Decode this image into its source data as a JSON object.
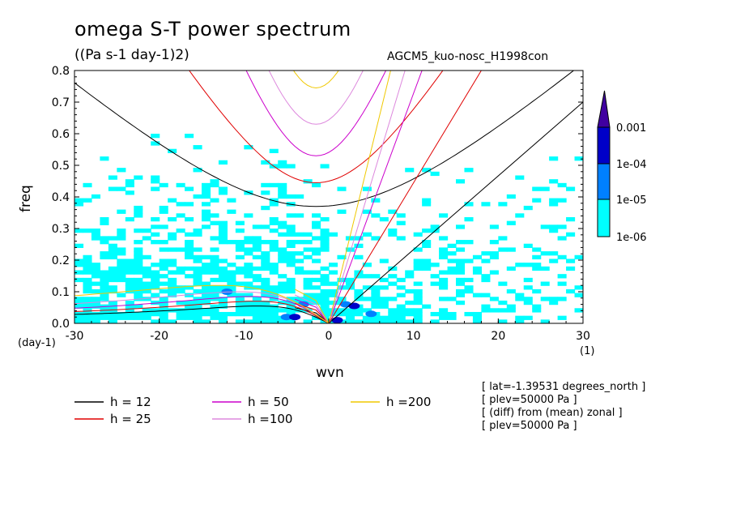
{
  "header": {
    "title": "omega S-T power spectrum",
    "subtitle": "((Pa s-1 day-1)2)",
    "run_name": "AGCM5_kuo-nosc_H1998con"
  },
  "axes": {
    "ylabel": "freq",
    "xlabel": "wvn",
    "xunit_left": "(day-1)",
    "xunit_right": "(1)"
  },
  "info_lines": [
    "[ lat=-1.39531 degrees_north ]",
    "[ plev=50000 Pa ]",
    "[ (diff) from (mean) zonal ]",
    "[ plev=50000 Pa ]"
  ],
  "colors": {
    "h12": "#000000",
    "h25": "#e00000",
    "h50": "#cc00cc",
    "h100": "#dd88dd",
    "h200": "#f0c800",
    "shade_1e-06": "#00ffff",
    "shade_1e-05": "#0080ff",
    "shade_1e-04": "#0000c8",
    "shade_0.001": "#4000a0"
  },
  "chart_data": {
    "type": "heatmap",
    "xlim": [
      -30,
      30
    ],
    "ylim": [
      0,
      0.8
    ],
    "x_ticks": [
      -30,
      -20,
      -10,
      0,
      10,
      20,
      30
    ],
    "y_ticks": [
      0.0,
      0.1,
      0.2,
      0.3,
      0.4,
      0.5,
      0.6,
      0.7,
      0.8
    ],
    "x_tick_labels": [
      "-30",
      "-20",
      "-10",
      "0",
      "10",
      "20",
      "30"
    ],
    "y_tick_labels": [
      "0.0",
      "0.1",
      "0.2",
      "0.3",
      "0.4",
      "0.5",
      "0.6",
      "0.7",
      "0.8"
    ],
    "contour_levels": [
      "1e-06",
      "1e-05",
      "1e-04",
      "0.001"
    ],
    "legend": [
      {
        "label": "h = 12",
        "h": 12
      },
      {
        "label": "h = 25",
        "h": 25
      },
      {
        "label": "h = 50",
        "h": 50
      },
      {
        "label": "h =100",
        "h": 100
      },
      {
        "label": "h =200",
        "h": 200
      }
    ],
    "dispersion_curves": [
      {
        "h": 12,
        "igw_min_freq": 0.37,
        "kelvin_freq_at_k30": 0.7,
        "rossby_peak_freq": 0.055
      },
      {
        "h": 25,
        "igw_min_freq": 0.445,
        "kelvin_freq_at_k18": 0.8,
        "rossby_peak_freq": 0.07
      },
      {
        "h": 50,
        "igw_min_freq": 0.53,
        "kelvin_freq_at_k11": 0.8,
        "rossby_peak_freq": 0.085
      },
      {
        "h": 100,
        "igw_min_freq": 0.63,
        "kelvin_freq_at_k9": 0.8,
        "rossby_peak_freq": 0.1
      },
      {
        "h": 200,
        "igw_min_freq": 0.745,
        "kelvin_freq_at_k7": 0.8,
        "rossby_peak_freq": 0.12
      }
    ]
  }
}
